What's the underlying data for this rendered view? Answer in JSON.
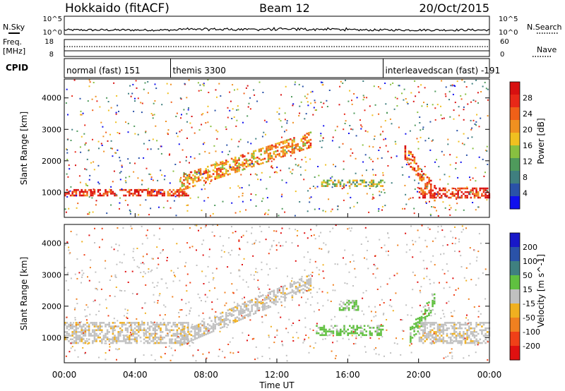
{
  "header": {
    "station": "Hokkaido (fitACF)",
    "beam": "Beam 12",
    "date": "20/Oct/2015"
  },
  "noise_panel": {
    "left_label": "N.Sky",
    "right_label": "N.Search",
    "left_ticks": [
      "10^5",
      "10^0"
    ],
    "right_ticks": [
      "10^5",
      "10^0"
    ]
  },
  "freq_panel": {
    "left_label_1": "Freq.",
    "left_label_2": "[MHz]",
    "right_label": "Nave",
    "left_ticks": [
      "18",
      "8"
    ],
    "right_ticks": [
      "60",
      "0"
    ]
  },
  "cpid_panel": {
    "label": "CPID",
    "segments": [
      {
        "name": "normal (fast) 151",
        "start_hour": 0
      },
      {
        "name": "themis 3300",
        "start_hour": 6
      },
      {
        "name": "interleavedscan (fast) -191",
        "start_hour": 18
      }
    ]
  },
  "x_axis": {
    "label": "Time UT",
    "ticks": [
      "00:00",
      "04:00",
      "08:00",
      "12:00",
      "16:00",
      "20:00",
      "00:00"
    ]
  },
  "chart_data": [
    {
      "type": "heatmap",
      "parameter": "Power",
      "ylabel": "Slant Range [km]",
      "xlabel": "Time UT",
      "xlim": [
        0,
        24
      ],
      "ylim": [
        200,
        4600
      ],
      "y_ticks": [
        1000,
        2000,
        3000,
        4000
      ],
      "colorbar": {
        "label": "Power [dB]",
        "ticks": [
          4,
          8,
          12,
          16,
          20,
          24,
          28
        ],
        "range": [
          0,
          32
        ],
        "colors": [
          "#1010ee",
          "#2a52a8",
          "#3f7f7f",
          "#4f9a5c",
          "#88c040",
          "#f0c020",
          "#f09020",
          "#f06018",
          "#e82818",
          "#d81010"
        ]
      },
      "features": [
        {
          "name": "low-range band",
          "t_start": 0.0,
          "t_end": 7.0,
          "range_km": [
            900,
            1100
          ],
          "level_db": 28
        },
        {
          "name": "evening band",
          "t_start": 20.0,
          "t_end": 24.0,
          "range_km": [
            850,
            1150
          ],
          "level_db": 28
        },
        {
          "name": "rising arc",
          "t_start": 6.5,
          "t_end": 14.0,
          "range_km": [
            1300,
            2700
          ],
          "level_db": 22
        },
        {
          "name": "mid band",
          "t_start": 14.5,
          "t_end": 18.0,
          "range_km": [
            1200,
            1400
          ],
          "level_db": 14
        },
        {
          "name": "morning arc",
          "t_start": 19.2,
          "t_end": 21.0,
          "range_km": [
            900,
            2300
          ],
          "level_db": 26
        }
      ]
    },
    {
      "type": "heatmap",
      "parameter": "Velocity",
      "ylabel": "Slant Range [km]",
      "xlabel": "Time UT",
      "xlim": [
        0,
        24
      ],
      "ylim": [
        200,
        4600
      ],
      "y_ticks": [
        1000,
        2000,
        3000,
        4000
      ],
      "colorbar": {
        "label": "Velocity [m s^-1]",
        "ticks": [
          200,
          100,
          50,
          15,
          -15,
          -50,
          -100,
          -200
        ],
        "colors": [
          "#1818c8",
          "#2a52a8",
          "#3f8080",
          "#60c040",
          "#c0c0c0",
          "#f0b020",
          "#f08020",
          "#f04018",
          "#e01010"
        ]
      },
      "features": [
        {
          "name": "grey ground scatter low",
          "t_start": 0.0,
          "t_end": 7.0,
          "range_km": [
            800,
            1500
          ],
          "velocity": 0
        },
        {
          "name": "grey scatter arc",
          "t_start": 6.5,
          "t_end": 14.0,
          "range_km": [
            1000,
            2800
          ],
          "velocity": 0
        },
        {
          "name": "green band",
          "t_start": 14.2,
          "t_end": 18.0,
          "range_km": [
            1100,
            1400
          ],
          "velocity": 30
        },
        {
          "name": "green patch",
          "t_start": 15.5,
          "t_end": 16.6,
          "range_km": [
            1900,
            2200
          ],
          "velocity": 30
        },
        {
          "name": "green arc",
          "t_start": 19.5,
          "t_end": 21.0,
          "range_km": [
            1100,
            2300
          ],
          "velocity": 40
        },
        {
          "name": "grey evening scatter",
          "t_start": 20.0,
          "t_end": 24.0,
          "range_km": [
            800,
            1500
          ],
          "velocity": 0
        }
      ]
    }
  ]
}
